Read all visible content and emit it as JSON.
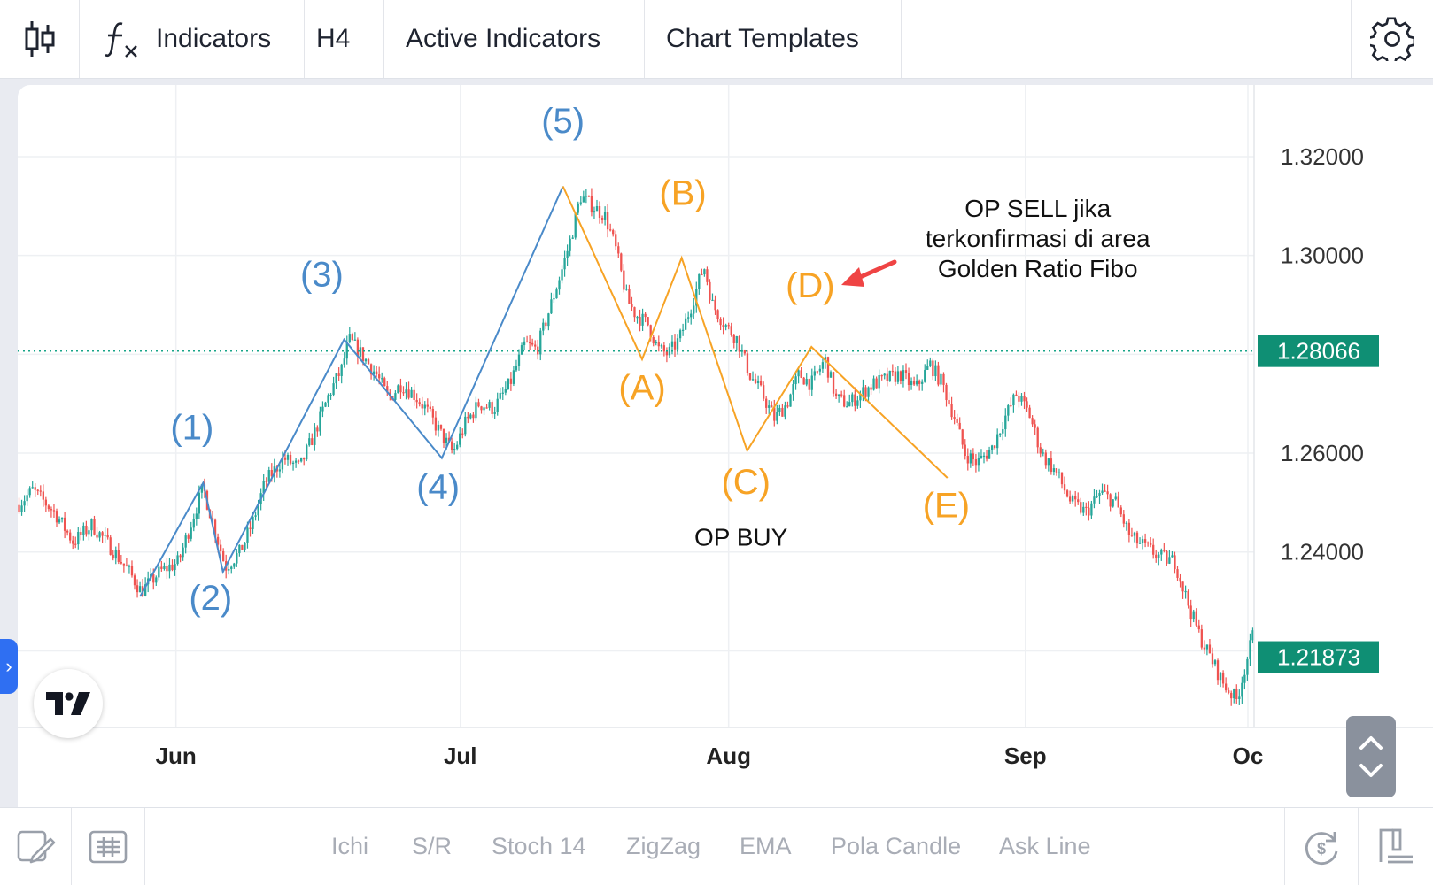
{
  "toolbar": {
    "indicators_label": "Indicators",
    "timeframe_label": "H4",
    "active_indicators_label": "Active Indicators",
    "chart_templates_label": "Chart Templates",
    "icons": [
      "candlestick-icon",
      "function-icon",
      "gear-icon"
    ]
  },
  "bottom_bar": {
    "quick_links": [
      "Ichi",
      "S/R",
      "Stoch 14",
      "ZigZag",
      "EMA",
      "Pola Candle",
      "Ask Line"
    ],
    "icons": [
      "draw-icon",
      "template-icon",
      "reset-icon",
      "layout-icon"
    ]
  },
  "chart_data": {
    "type": "candlestick",
    "x_ticks": [
      {
        "label": "Jun",
        "t": 0.128
      },
      {
        "label": "Jul",
        "t": 0.358
      },
      {
        "label": "Aug",
        "t": 0.575
      },
      {
        "label": "Sep",
        "t": 0.815
      },
      {
        "label": "Oc",
        "t": 0.995
      }
    ],
    "y_ticks": [
      "1.32000",
      "1.30000",
      "1.28000",
      "1.26000",
      "1.24000"
    ],
    "y_tick_values": [
      1.32,
      1.3,
      1.28,
      1.26,
      1.24
    ],
    "ylim": [
      1.2045,
      1.3345
    ],
    "current_price": {
      "label": "1.28066",
      "value": 1.28066
    },
    "last_price": {
      "label": "1.21873",
      "value": 1.21873
    },
    "grid": true,
    "colors": {
      "bullish": "#26a69a",
      "bearish": "#ef5350",
      "impulse": "#4a8ac9",
      "corrective": "#f7a325",
      "price_badge": "#0f8f74",
      "annotation_arrow": "#ef4444"
    },
    "price_path": [
      [
        0.0,
        1.2495
      ],
      [
        0.012,
        1.2525
      ],
      [
        0.03,
        1.248
      ],
      [
        0.045,
        1.242
      ],
      [
        0.06,
        1.2455
      ],
      [
        0.075,
        1.241
      ],
      [
        0.09,
        1.236
      ],
      [
        0.1,
        1.232
      ],
      [
        0.115,
        1.236
      ],
      [
        0.13,
        1.238
      ],
      [
        0.143,
        1.248
      ],
      [
        0.15,
        1.253
      ],
      [
        0.16,
        1.244
      ],
      [
        0.168,
        1.237
      ],
      [
        0.18,
        1.24
      ],
      [
        0.19,
        1.246
      ],
      [
        0.2,
        1.254
      ],
      [
        0.215,
        1.259
      ],
      [
        0.228,
        1.257
      ],
      [
        0.24,
        1.264
      ],
      [
        0.252,
        1.272
      ],
      [
        0.262,
        1.277
      ],
      [
        0.268,
        1.283
      ],
      [
        0.278,
        1.28
      ],
      [
        0.29,
        1.276
      ],
      [
        0.3,
        1.271
      ],
      [
        0.31,
        1.274
      ],
      [
        0.32,
        1.272
      ],
      [
        0.33,
        1.269
      ],
      [
        0.342,
        1.264
      ],
      [
        0.352,
        1.26
      ],
      [
        0.362,
        1.266
      ],
      [
        0.373,
        1.27
      ],
      [
        0.385,
        1.269
      ],
      [
        0.398,
        1.274
      ],
      [
        0.41,
        1.282
      ],
      [
        0.42,
        1.281
      ],
      [
        0.43,
        1.289
      ],
      [
        0.44,
        1.297
      ],
      [
        0.448,
        1.304
      ],
      [
        0.455,
        1.312
      ],
      [
        0.465,
        1.31
      ],
      [
        0.475,
        1.308
      ],
      [
        0.483,
        1.302
      ],
      [
        0.493,
        1.291
      ],
      [
        0.5,
        1.288
      ],
      [
        0.51,
        1.286
      ],
      [
        0.518,
        1.281
      ],
      [
        0.526,
        1.28
      ],
      [
        0.535,
        1.283
      ],
      [
        0.545,
        1.29
      ],
      [
        0.555,
        1.298
      ],
      [
        0.562,
        1.29
      ],
      [
        0.572,
        1.286
      ],
      [
        0.582,
        1.283
      ],
      [
        0.592,
        1.276
      ],
      [
        0.602,
        1.272
      ],
      [
        0.612,
        1.267
      ],
      [
        0.622,
        1.27
      ],
      [
        0.632,
        1.276
      ],
      [
        0.642,
        1.274
      ],
      [
        0.653,
        1.279
      ],
      [
        0.662,
        1.271
      ],
      [
        0.672,
        1.27
      ],
      [
        0.682,
        1.272
      ],
      [
        0.692,
        1.274
      ],
      [
        0.703,
        1.275
      ],
      [
        0.714,
        1.276
      ],
      [
        0.726,
        1.273
      ],
      [
        0.738,
        1.278
      ],
      [
        0.748,
        1.274
      ],
      [
        0.758,
        1.267
      ],
      [
        0.766,
        1.26
      ],
      [
        0.776,
        1.258
      ],
      [
        0.788,
        1.261
      ],
      [
        0.798,
        1.267
      ],
      [
        0.808,
        1.272
      ],
      [
        0.818,
        1.268
      ],
      [
        0.828,
        1.26
      ],
      [
        0.84,
        1.256
      ],
      [
        0.852,
        1.25
      ],
      [
        0.864,
        1.248
      ],
      [
        0.876,
        1.252
      ],
      [
        0.888,
        1.25
      ],
      [
        0.9,
        1.243
      ],
      [
        0.912,
        1.241
      ],
      [
        0.924,
        1.239
      ],
      [
        0.936,
        1.238
      ],
      [
        0.946,
        1.23
      ],
      [
        0.956,
        1.223
      ],
      [
        0.966,
        1.218
      ],
      [
        0.976,
        1.213
      ],
      [
        0.986,
        1.21
      ],
      [
        0.994,
        1.218
      ],
      [
        1.0,
        1.224
      ],
      [
        1.004,
        1.2187
      ]
    ],
    "impulse_wave": [
      [
        0.099,
        1.231
      ],
      [
        0.15,
        1.254
      ],
      [
        0.166,
        1.236
      ],
      [
        0.264,
        1.283
      ],
      [
        0.343,
        1.259
      ],
      [
        0.441,
        1.314
      ]
    ],
    "corrective_wave": [
      [
        0.441,
        1.314
      ],
      [
        0.505,
        1.279
      ],
      [
        0.537,
        1.2995
      ],
      [
        0.59,
        1.2605
      ],
      [
        0.642,
        1.2815
      ],
      [
        0.752,
        1.255
      ]
    ],
    "wave_labels": [
      {
        "text": "(1)",
        "t": 0.141,
        "y": 1.2628,
        "wave": "impulse"
      },
      {
        "text": "(2)",
        "t": 0.156,
        "y": 1.2283,
        "wave": "impulse"
      },
      {
        "text": "(3)",
        "t": 0.246,
        "y": 1.2938,
        "wave": "impulse"
      },
      {
        "text": "(4)",
        "t": 0.34,
        "y": 1.2508,
        "wave": "impulse"
      },
      {
        "text": "(5)",
        "t": 0.441,
        "y": 1.3248,
        "wave": "impulse"
      },
      {
        "text": "(A)",
        "t": 0.505,
        "y": 1.2708,
        "wave": "corrective"
      },
      {
        "text": "(B)",
        "t": 0.538,
        "y": 1.3102,
        "wave": "corrective"
      },
      {
        "text": "(C)",
        "t": 0.589,
        "y": 1.2518,
        "wave": "corrective"
      },
      {
        "text": "(D)",
        "t": 0.641,
        "y": 1.2915,
        "wave": "corrective"
      },
      {
        "text": "(E)",
        "t": 0.751,
        "y": 1.247,
        "wave": "corrective"
      }
    ],
    "annotations": [
      {
        "lines": [
          "OP SELL jika",
          "terkonfirmasi di area",
          "Golden Ratio Fibo"
        ],
        "t": 0.825,
        "y": 1.3078
      },
      {
        "lines": [
          "OP BUY"
        ],
        "t": 0.585,
        "y": 1.2413
      }
    ]
  }
}
